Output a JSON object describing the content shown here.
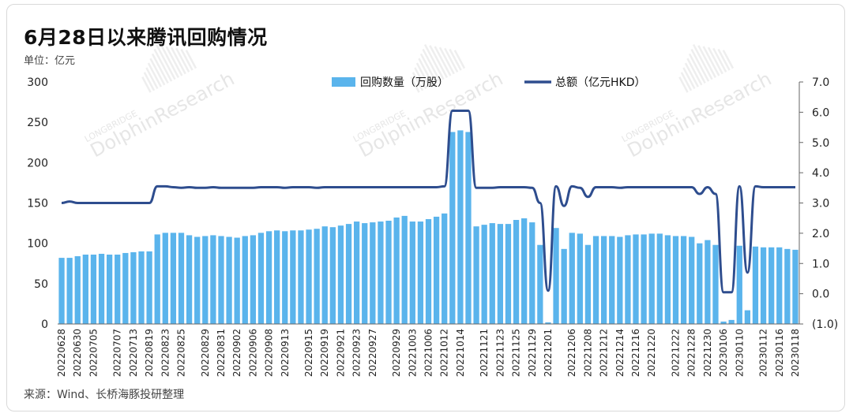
{
  "header": {
    "title": "6月28日以来腾讯回购情况",
    "unit": "单位：亿元"
  },
  "footer": {
    "source": "来源：Wind、长桥海豚投研整理"
  },
  "watermark": {
    "brand": "LONGBRIDGE",
    "name": "DolphinResearch"
  },
  "colors": {
    "bar": "#5ab4ec",
    "line": "#2e4d8e",
    "negative_tick": "#d62728"
  },
  "chart_data": {
    "type": "bar",
    "title": "6月28日以来腾讯回购情况",
    "ylabel": "单位：亿元",
    "ylim": [
      0,
      300
    ],
    "y2lim": [
      -1,
      7
    ],
    "yticks": [
      "0",
      "50",
      "100",
      "150",
      "200",
      "250",
      "300"
    ],
    "y2ticks": [
      "(1.0)",
      "0.0",
      "1.0",
      "2.0",
      "3.0",
      "4.0",
      "5.0",
      "6.0",
      "7.0"
    ],
    "xtick_labels": [
      "20220628",
      "20220630",
      "20220705",
      "20220707",
      "20220713",
      "20220819",
      "20220823",
      "20220825",
      "20220829",
      "20220831",
      "20220902",
      "20220906",
      "20220908",
      "20220913",
      "20220915",
      "20220919",
      "20220921",
      "20220923",
      "20220927",
      "20220929",
      "20221003",
      "20221006",
      "20221012",
      "20221014",
      "20221121",
      "20221123",
      "20221125",
      "20221129",
      "20221201",
      "20221206",
      "20221208",
      "20221212",
      "20221214",
      "20221216",
      "20221220",
      "20221222",
      "20221228",
      "20221230",
      "20230106",
      "20230110",
      "20230112",
      "20230116",
      "20230118"
    ],
    "legend_position": "top-center",
    "series": [
      {
        "name": "回购数量（万股）",
        "kind": "bar",
        "axis": "left",
        "values": [
          82,
          82,
          84,
          86,
          86,
          87,
          86,
          86,
          88,
          89,
          90,
          90,
          111,
          113,
          113,
          113,
          110,
          108,
          109,
          110,
          109,
          108,
          107,
          109,
          110,
          113,
          115,
          116,
          115,
          116,
          116,
          117,
          118,
          121,
          120,
          122,
          124,
          127,
          125,
          126,
          127,
          128,
          132,
          134,
          127,
          127,
          130,
          133,
          137,
          238,
          240,
          238,
          121,
          123,
          125,
          124,
          124,
          129,
          131,
          126,
          98,
          2,
          119,
          93,
          113,
          112,
          98,
          109,
          109,
          109,
          108,
          110,
          111,
          111,
          112,
          112,
          110,
          109,
          109,
          108,
          100,
          104,
          98,
          3,
          5,
          97,
          17,
          96,
          95,
          95,
          95,
          93,
          92
        ]
      },
      {
        "name": "总额（亿元HKD）",
        "kind": "line",
        "axis": "right",
        "values": [
          3.0,
          3.05,
          3.0,
          3.0,
          3.0,
          3.0,
          3.0,
          3.0,
          3.0,
          3.0,
          3.0,
          3.0,
          3.55,
          3.55,
          3.52,
          3.5,
          3.52,
          3.5,
          3.5,
          3.52,
          3.5,
          3.5,
          3.5,
          3.5,
          3.5,
          3.52,
          3.52,
          3.52,
          3.5,
          3.52,
          3.52,
          3.52,
          3.5,
          3.52,
          3.52,
          3.52,
          3.52,
          3.52,
          3.52,
          3.52,
          3.52,
          3.52,
          3.52,
          3.52,
          3.52,
          3.52,
          3.52,
          3.52,
          3.55,
          6.05,
          6.05,
          6.05,
          3.5,
          3.5,
          3.5,
          3.52,
          3.52,
          3.52,
          3.52,
          3.5,
          3.0,
          0.1,
          3.55,
          2.9,
          3.55,
          3.5,
          3.2,
          3.52,
          3.52,
          3.52,
          3.5,
          3.52,
          3.52,
          3.52,
          3.52,
          3.52,
          3.52,
          3.52,
          3.52,
          3.52,
          3.3,
          3.52,
          3.3,
          0.05,
          0.05,
          3.55,
          0.7,
          3.55,
          3.52,
          3.52,
          3.52,
          3.52,
          3.52
        ]
      }
    ]
  }
}
